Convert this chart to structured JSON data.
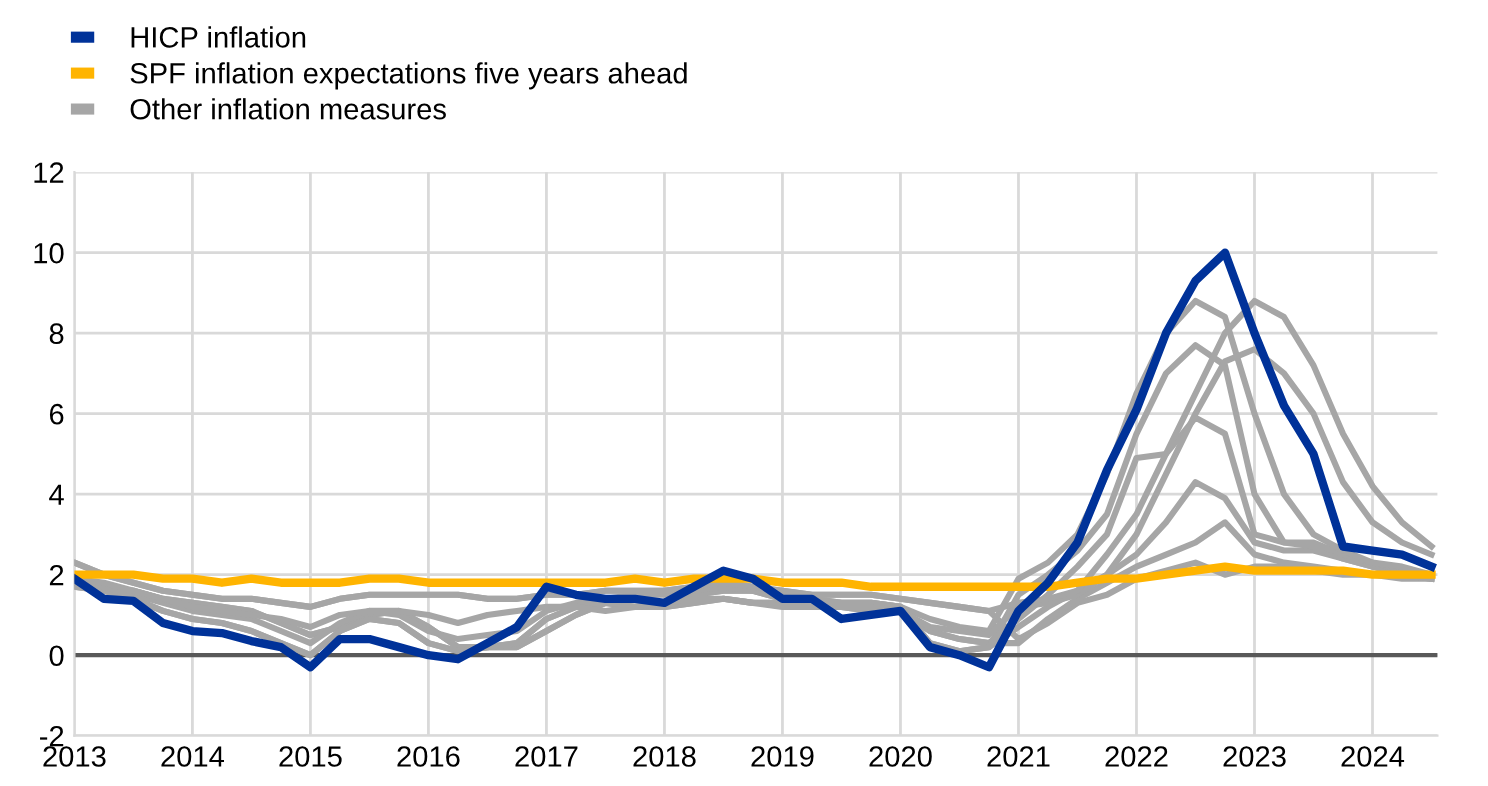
{
  "chart_data": {
    "type": "line",
    "x": [
      2013.0,
      2013.25,
      2013.5,
      2013.75,
      2014.0,
      2014.25,
      2014.5,
      2014.75,
      2015.0,
      2015.25,
      2015.5,
      2015.75,
      2016.0,
      2016.25,
      2016.5,
      2016.75,
      2017.0,
      2017.25,
      2017.5,
      2017.75,
      2018.0,
      2018.25,
      2018.5,
      2018.75,
      2019.0,
      2019.25,
      2019.5,
      2019.75,
      2020.0,
      2020.25,
      2020.5,
      2020.75,
      2021.0,
      2021.25,
      2021.5,
      2021.75,
      2022.0,
      2022.25,
      2022.5,
      2022.75,
      2023.0,
      2023.25,
      2023.5,
      2023.75,
      2024.0,
      2024.25,
      2024.5
    ],
    "series": [
      {
        "name": "HICP inflation",
        "color": "#003299",
        "values": [
          1.9,
          1.4,
          1.35,
          0.8,
          0.6,
          0.55,
          0.35,
          0.2,
          -0.3,
          0.4,
          0.4,
          0.2,
          0.0,
          -0.1,
          0.3,
          0.7,
          1.7,
          1.5,
          1.4,
          1.4,
          1.3,
          1.7,
          2.1,
          1.9,
          1.4,
          1.4,
          0.9,
          1.0,
          1.1,
          0.2,
          0.0,
          -0.3,
          1.1,
          1.8,
          2.8,
          4.6,
          6.1,
          8.0,
          9.3,
          10.0,
          8.0,
          6.2,
          5.0,
          2.7,
          2.6,
          2.5,
          2.2
        ]
      },
      {
        "name": "SPF inflation expectations five years ahead",
        "color": "#ffb400",
        "values": [
          2.0,
          2.0,
          2.0,
          1.9,
          1.9,
          1.8,
          1.9,
          1.8,
          1.8,
          1.8,
          1.9,
          1.9,
          1.8,
          1.8,
          1.8,
          1.8,
          1.8,
          1.8,
          1.8,
          1.9,
          1.8,
          1.9,
          1.9,
          1.9,
          1.8,
          1.8,
          1.8,
          1.7,
          1.7,
          1.7,
          1.7,
          1.7,
          1.7,
          1.7,
          1.8,
          1.9,
          1.9,
          2.0,
          2.1,
          2.2,
          2.1,
          2.1,
          2.1,
          2.1,
          2.0,
          2.0,
          2.0
        ]
      },
      {
        "name": "Other inflation measures",
        "color": "#a6a6a6",
        "values": [
          2.3,
          2.0,
          1.8,
          1.6,
          1.5,
          1.4,
          1.4,
          1.3,
          1.2,
          1.4,
          1.5,
          1.5,
          1.5,
          1.5,
          1.4,
          1.4,
          1.5,
          1.5,
          1.6,
          1.6,
          1.6,
          1.7,
          1.8,
          1.7,
          1.6,
          1.5,
          1.5,
          1.5,
          1.4,
          1.3,
          1.2,
          1.1,
          1.3,
          1.4,
          1.6,
          2.5,
          3.5,
          5.0,
          6.5,
          8.0,
          8.8,
          8.4,
          7.2,
          5.5,
          4.2,
          3.3,
          2.7
        ]
      },
      {
        "color": "#a6a6a6",
        "values": [
          1.9,
          1.8,
          1.6,
          1.4,
          1.2,
          1.1,
          1.0,
          0.9,
          0.7,
          1.0,
          1.1,
          1.1,
          1.0,
          0.8,
          1.0,
          1.1,
          1.2,
          1.2,
          1.1,
          1.2,
          1.3,
          1.4,
          1.4,
          1.3,
          1.2,
          1.2,
          1.2,
          1.2,
          1.1,
          0.7,
          0.6,
          0.5,
          1.2,
          1.3,
          1.5,
          2.0,
          3.0,
          4.5,
          6.0,
          7.3,
          7.6,
          7.0,
          6.0,
          4.3,
          3.3,
          2.8,
          2.5
        ]
      },
      {
        "color": "#a6a6a6",
        "values": [
          1.8,
          1.7,
          1.5,
          1.3,
          1.1,
          1.0,
          0.9,
          0.6,
          0.3,
          0.8,
          1.1,
          1.0,
          0.6,
          0.4,
          0.5,
          0.6,
          1.1,
          1.3,
          1.4,
          1.5,
          1.5,
          1.6,
          1.7,
          1.6,
          1.5,
          1.3,
          1.3,
          1.3,
          1.2,
          0.9,
          0.7,
          0.6,
          1.9,
          2.3,
          3.0,
          4.5,
          6.5,
          8.0,
          8.8,
          8.4,
          6.0,
          4.0,
          3.0,
          2.6,
          2.3,
          2.2,
          2.0
        ]
      },
      {
        "color": "#a6a6a6",
        "values": [
          1.7,
          1.6,
          1.4,
          1.1,
          0.9,
          0.8,
          0.6,
          0.3,
          0.0,
          0.6,
          0.9,
          0.8,
          0.3,
          0.1,
          0.2,
          0.3,
          0.9,
          1.2,
          1.3,
          1.4,
          1.3,
          1.5,
          1.6,
          1.6,
          1.4,
          1.4,
          1.3,
          1.3,
          1.2,
          0.3,
          0.1,
          0.2,
          1.5,
          2.0,
          2.6,
          3.5,
          5.5,
          7.0,
          7.7,
          7.2,
          4.0,
          2.8,
          2.8,
          2.5,
          2.3,
          2.1,
          2.0
        ]
      },
      {
        "color": "#a6a6a6",
        "values": [
          1.9,
          1.7,
          1.6,
          1.4,
          1.3,
          1.2,
          1.1,
          0.8,
          0.5,
          0.7,
          1.0,
          1.1,
          0.7,
          0.2,
          0.2,
          0.2,
          0.6,
          1.0,
          1.3,
          1.2,
          1.2,
          1.3,
          1.4,
          1.3,
          1.3,
          1.2,
          1.2,
          1.1,
          1.1,
          0.6,
          0.4,
          0.3,
          0.9,
          1.5,
          2.2,
          3.0,
          4.9,
          5.0,
          5.9,
          5.5,
          3.0,
          2.8,
          2.7,
          2.4,
          2.2,
          2.1,
          2.0
        ]
      },
      {
        "color": "#a6a6a6",
        "values": [
          1.7,
          1.6,
          1.4,
          1.1,
          0.9,
          0.8,
          0.6,
          0.3,
          0.0,
          0.6,
          0.9,
          0.8,
          0.3,
          0.1,
          0.2,
          0.3,
          0.9,
          1.2,
          1.3,
          1.4,
          1.3,
          1.5,
          1.6,
          1.6,
          1.4,
          1.4,
          1.3,
          1.3,
          1.2,
          0.3,
          0.1,
          0.2,
          0.7,
          1.2,
          1.6,
          2.0,
          2.5,
          3.3,
          4.3,
          3.9,
          2.8,
          2.6,
          2.6,
          2.4,
          2.2,
          2.0,
          1.9
        ]
      },
      {
        "color": "#a6a6a6",
        "values": [
          1.9,
          1.7,
          1.6,
          1.4,
          1.3,
          1.2,
          1.1,
          0.8,
          0.5,
          0.7,
          1.0,
          1.1,
          0.7,
          0.2,
          0.2,
          0.2,
          0.6,
          1.0,
          1.3,
          1.2,
          1.2,
          1.3,
          1.4,
          1.3,
          1.3,
          1.2,
          1.2,
          1.1,
          1.1,
          0.6,
          0.4,
          0.3,
          0.3,
          0.9,
          1.4,
          1.8,
          2.2,
          2.5,
          2.8,
          3.3,
          2.5,
          2.3,
          2.2,
          2.1,
          2.0,
          2.0,
          1.9
        ]
      },
      {
        "color": "#a6a6a6",
        "values": [
          2.3,
          2.0,
          1.8,
          1.6,
          1.5,
          1.4,
          1.4,
          1.3,
          1.2,
          1.4,
          1.5,
          1.5,
          1.5,
          1.5,
          1.4,
          1.4,
          1.5,
          1.5,
          1.6,
          1.6,
          1.6,
          1.7,
          1.8,
          1.7,
          1.6,
          1.5,
          1.5,
          1.5,
          1.4,
          1.3,
          1.2,
          1.1,
          0.4,
          0.8,
          1.3,
          1.5,
          1.9,
          2.1,
          2.3,
          2.0,
          2.2,
          2.2,
          2.1,
          2.0,
          2.0,
          1.9,
          1.9
        ]
      }
    ],
    "xlim": [
      2013,
      2024.55
    ],
    "xticks": [
      2013,
      2014,
      2015,
      2016,
      2017,
      2018,
      2019,
      2020,
      2021,
      2022,
      2023,
      2024
    ],
    "ylim": [
      -2,
      12
    ],
    "yticks": [
      -2,
      0,
      2,
      4,
      6,
      8,
      10,
      12
    ],
    "ref_lines": [
      {
        "axis": "y",
        "value": 0,
        "color": "#595959"
      }
    ],
    "grid": true,
    "legend": "top left",
    "marker": "none",
    "line_style": "solid"
  }
}
